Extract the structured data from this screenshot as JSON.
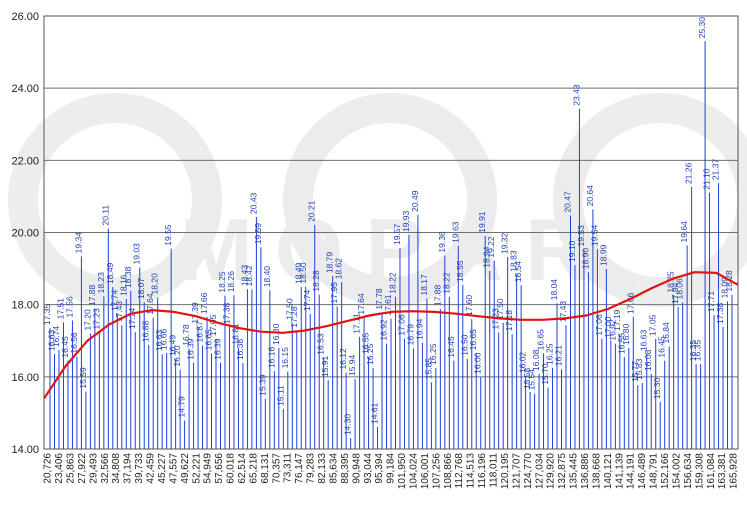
{
  "chart_data": {
    "type": "bar",
    "title": "",
    "xlabel": "",
    "ylabel": "",
    "ylim": [
      14,
      26
    ],
    "y_ticks": [
      "14.00",
      "16.00",
      "18.00",
      "20.00",
      "22.00",
      "24.00",
      "26.00"
    ],
    "grid": "horizontal",
    "x_tick_labels": [
      "20,726",
      "23,406",
      "25,863",
      "27,922",
      "29,493",
      "32,566",
      "34,808",
      "37,194",
      "39,733",
      "42,459",
      "45,227",
      "47,557",
      "49,622",
      "52,221",
      "54,949",
      "57,656",
      "60,018",
      "62,514",
      "65,218",
      "68,131",
      "70,357",
      "73,311",
      "76,147",
      "79,283",
      "82,133",
      "85,634",
      "88,395",
      "90,948",
      "93,044",
      "95,394",
      "99,184",
      "101,950",
      "104,024",
      "106,001",
      "107,256",
      "108,866",
      "112,768",
      "114,513",
      "116,196",
      "118,011",
      "120,195",
      "121,707",
      "124,770",
      "127,034",
      "129,920",
      "132,875",
      "135,445",
      "136,886",
      "138,668",
      "140,121",
      "141,139",
      "144,191",
      "146,489",
      "148,791",
      "152,166",
      "154,002",
      "156,634",
      "159,308",
      "161,084",
      "163,381",
      "165,928"
    ],
    "series": [
      {
        "values": [
          17.35,
          16.63,
          16.74,
          17.51,
          16.45,
          17.56,
          16.56,
          19.34,
          15.59,
          17.2,
          17.88,
          17.23,
          18.23,
          20.11,
          18.49,
          17.74,
          17.43,
          18.16,
          18.38,
          17.24,
          19.03,
          18.07,
          16.88,
          17.64,
          18.2,
          16.63,
          16.66,
          19.55,
          16.49,
          16.2,
          14.79,
          16.78,
          16.39,
          17.39,
          16.87,
          17.66,
          16.65,
          17.05,
          16.39,
          18.25,
          17.38,
          18.26,
          16.81,
          16.38,
          18.43,
          18.42,
          20.43,
          19.59,
          15.39,
          18.4,
          16.16,
          16.8,
          15.11,
          16.15,
          17.5,
          17.28,
          18.49,
          18.5,
          17.74,
          20.21,
          18.28,
          16.53,
          15.91,
          18.79,
          17.95,
          18.62,
          16.12,
          14.3,
          15.94,
          17.11,
          17.64,
          16.55,
          16.25,
          14.61,
          17.78,
          16.92,
          17.61,
          18.22,
          19.57,
          17.06,
          19.93,
          16.79,
          20.49,
          16.94,
          18.17,
          15.85,
          16.25,
          17.88,
          19.36,
          18.22,
          16.45,
          19.63,
          18.55,
          16.5,
          17.6,
          16.65,
          16.0,
          19.91,
          18.94,
          19.22,
          17.23,
          17.5,
          19.32,
          17.18,
          18.83,
          18.54,
          16.02,
          15.58,
          15.54,
          16.08,
          16.65,
          15.7,
          16.25,
          18.04,
          16.21,
          17.43,
          20.47,
          19.1,
          23.43,
          19.53,
          18.9,
          20.64,
          19.54,
          17.06,
          18.99,
          17.0,
          16.92,
          17.19,
          16.55,
          16.8,
          17.66,
          15.77,
          15.83,
          16.63,
          16.08,
          17.05,
          15.3,
          16.45,
          16.84,
          18.25,
          17.94,
          18.06,
          19.64,
          21.26,
          16.35,
          16.35,
          25.3,
          21.1,
          17.71,
          21.37,
          17.38,
          18.09,
          18.28
        ]
      },
      {
        "type": "line",
        "values": [
          15.4,
          16.3,
          17.0,
          17.45,
          17.75,
          17.85,
          17.8,
          17.68,
          17.5,
          17.35,
          17.25,
          17.22,
          17.28,
          17.4,
          17.55,
          17.7,
          17.8,
          17.82,
          17.8,
          17.75,
          17.68,
          17.62,
          17.58,
          17.58,
          17.62,
          17.7,
          17.88,
          18.15,
          18.45,
          18.72,
          18.9,
          18.88,
          18.55
        ]
      }
    ]
  },
  "colors": {
    "bar": "#1f3fd9",
    "trend": "#e01414",
    "grid": "#6f6f6f",
    "label": "#1d3fb5"
  },
  "watermark": "MOPAR"
}
